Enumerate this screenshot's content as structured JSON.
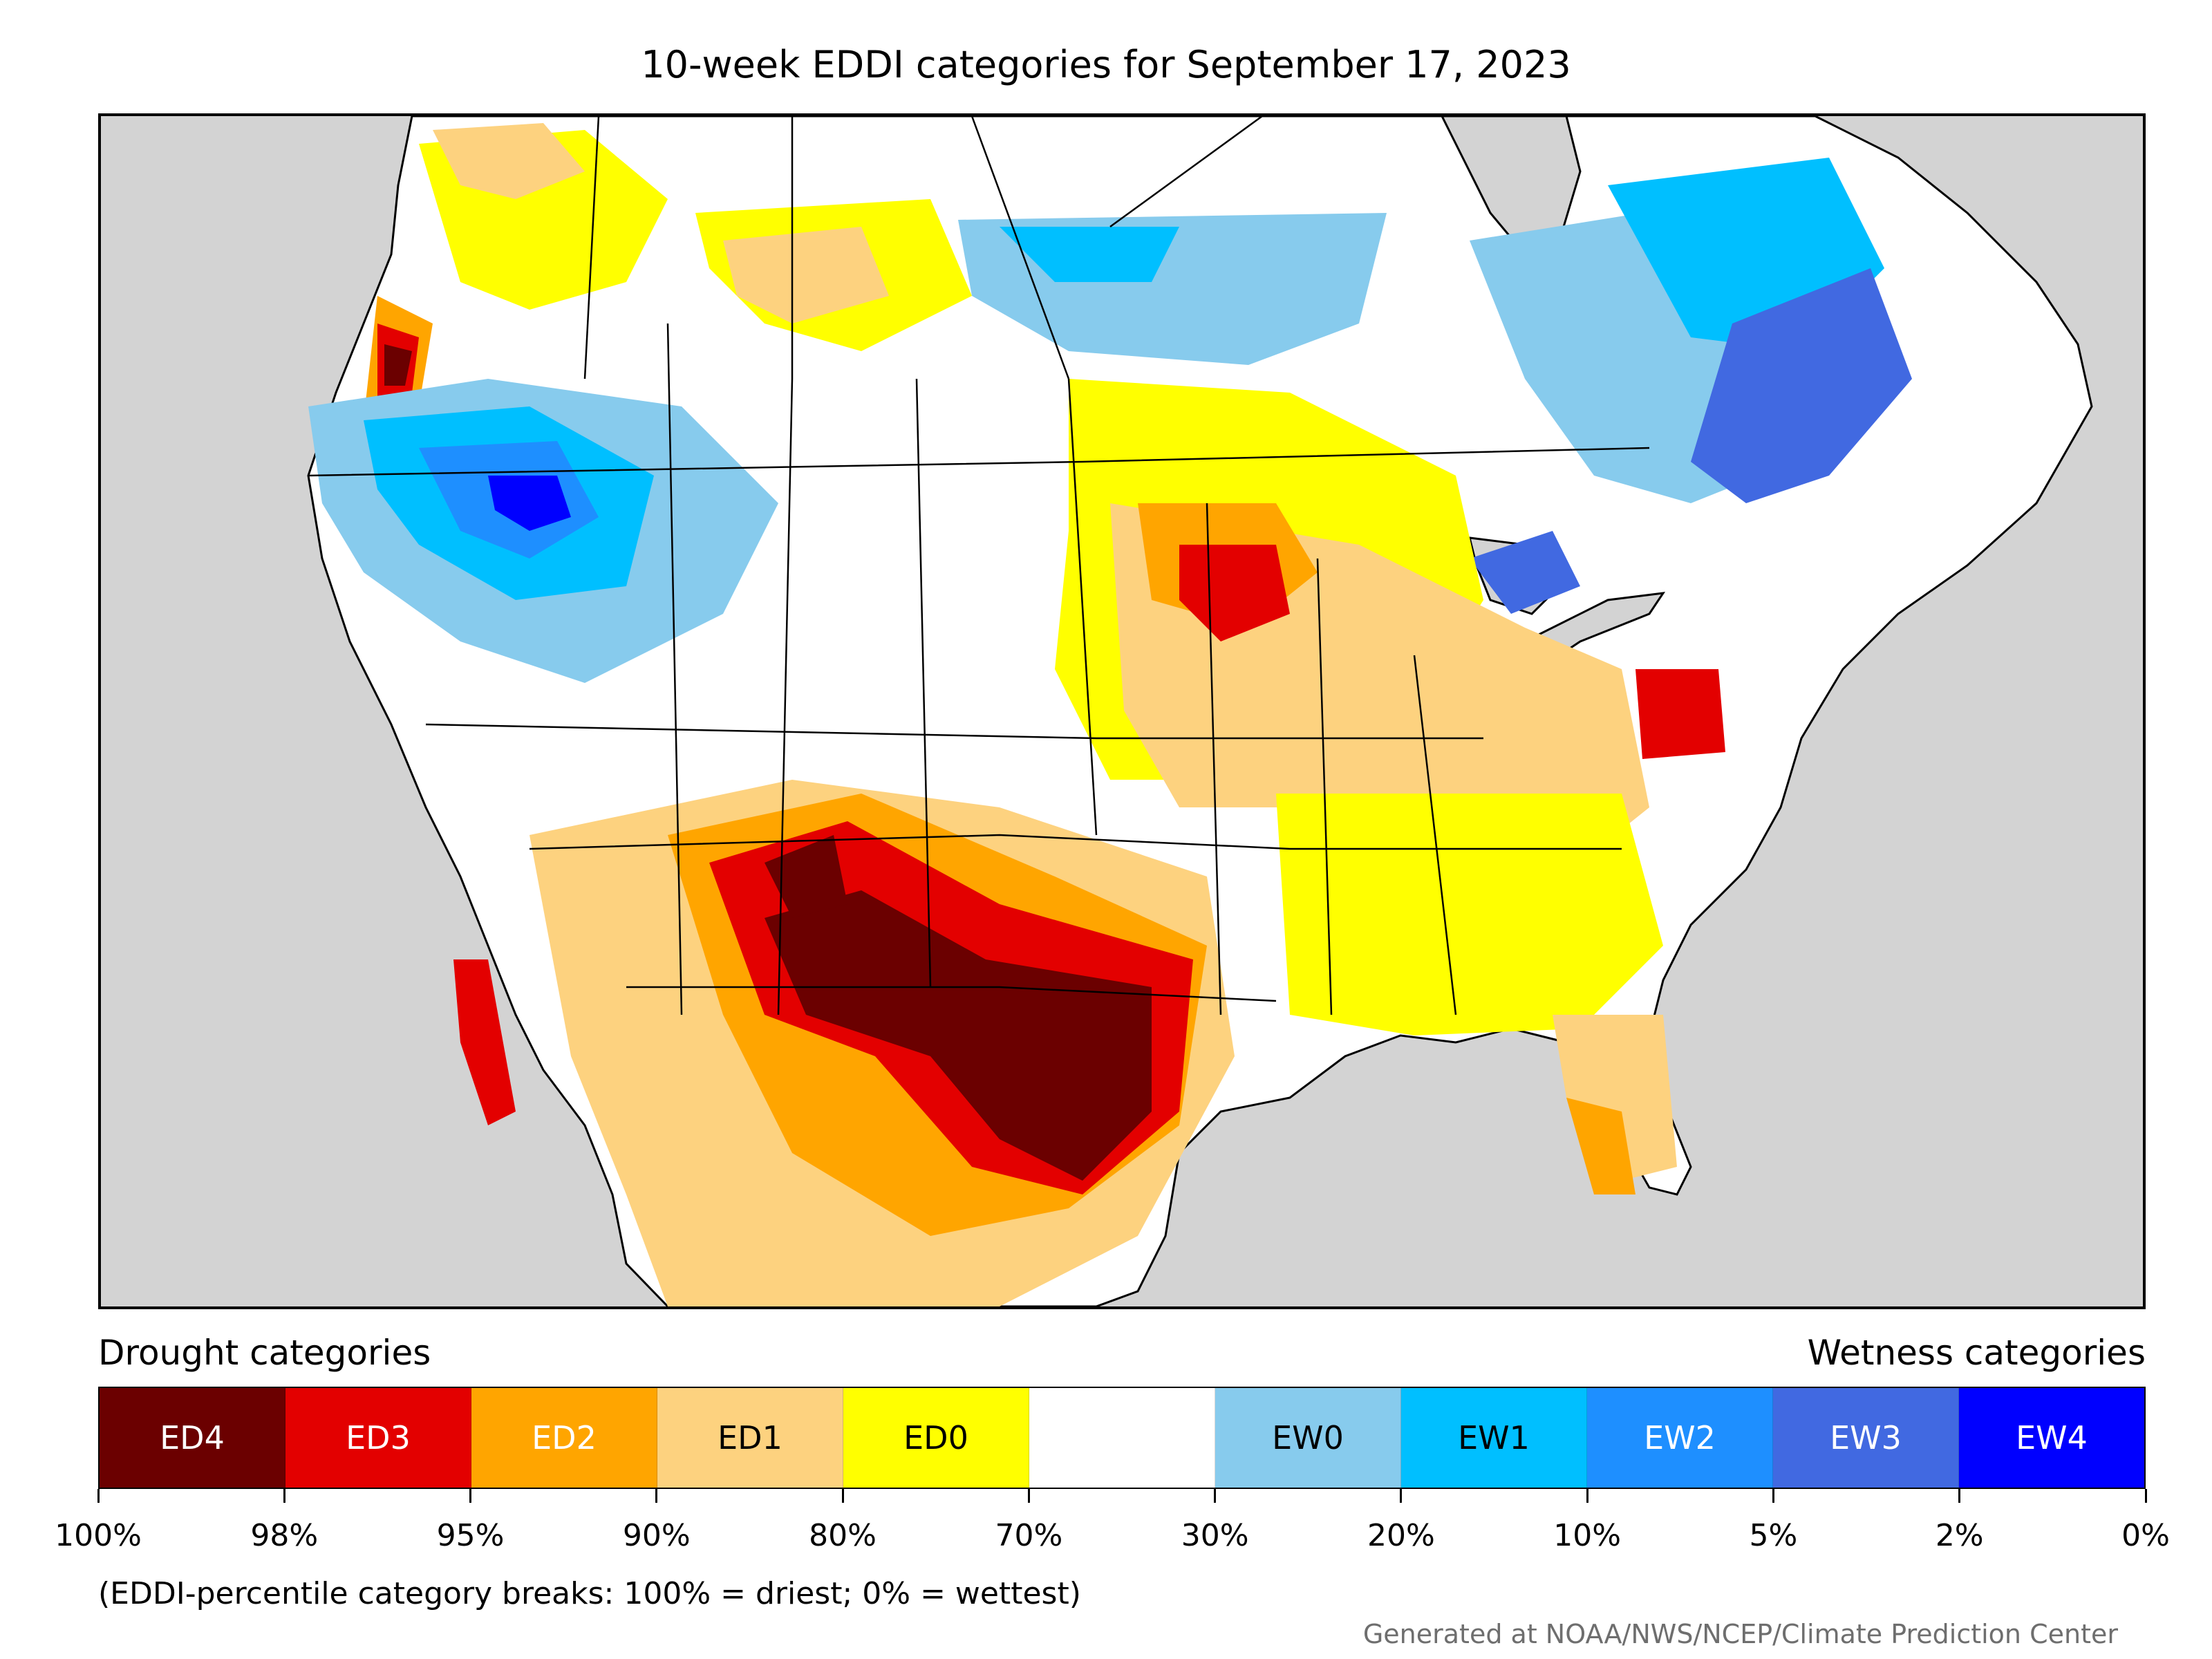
{
  "title": "10-week EDDI categories for September 17, 2023",
  "legend": {
    "left_heading": "Drought categories",
    "right_heading": "Wetness categories",
    "categories": [
      {
        "label": "ED4",
        "color": "#6b0000",
        "text_color": "#ffffff"
      },
      {
        "label": "ED3",
        "color": "#e30000",
        "text_color": "#ffffff"
      },
      {
        "label": "ED2",
        "color": "#ffa500",
        "text_color": "#ffffff"
      },
      {
        "label": "ED1",
        "color": "#fdd27f",
        "text_color": "#000000"
      },
      {
        "label": "ED0",
        "color": "#ffff00",
        "text_color": "#000000"
      },
      {
        "label": "",
        "color": "#ffffff",
        "text_color": "#000000"
      },
      {
        "label": "EW0",
        "color": "#87cbed",
        "text_color": "#000000"
      },
      {
        "label": "EW1",
        "color": "#00bfff",
        "text_color": "#000000"
      },
      {
        "label": "EW2",
        "color": "#1e8fff",
        "text_color": "#ffffff"
      },
      {
        "label": "EW3",
        "color": "#4169e1",
        "text_color": "#ffffff"
      },
      {
        "label": "EW4",
        "color": "#0000ff",
        "text_color": "#ffffff"
      }
    ],
    "breaks": [
      "100%",
      "98%",
      "95%",
      "90%",
      "80%",
      "70%",
      "30%",
      "20%",
      "10%",
      "5%",
      "2%",
      "0%"
    ]
  },
  "note": "(EDDI-percentile category breaks: 100% = driest; 0% = wettest)",
  "credit": "Generated at NOAA/NWS/NCEP/Climate Prediction Center",
  "map": {
    "background_color": "#d3d3d3",
    "land_color": "#ffffff"
  }
}
